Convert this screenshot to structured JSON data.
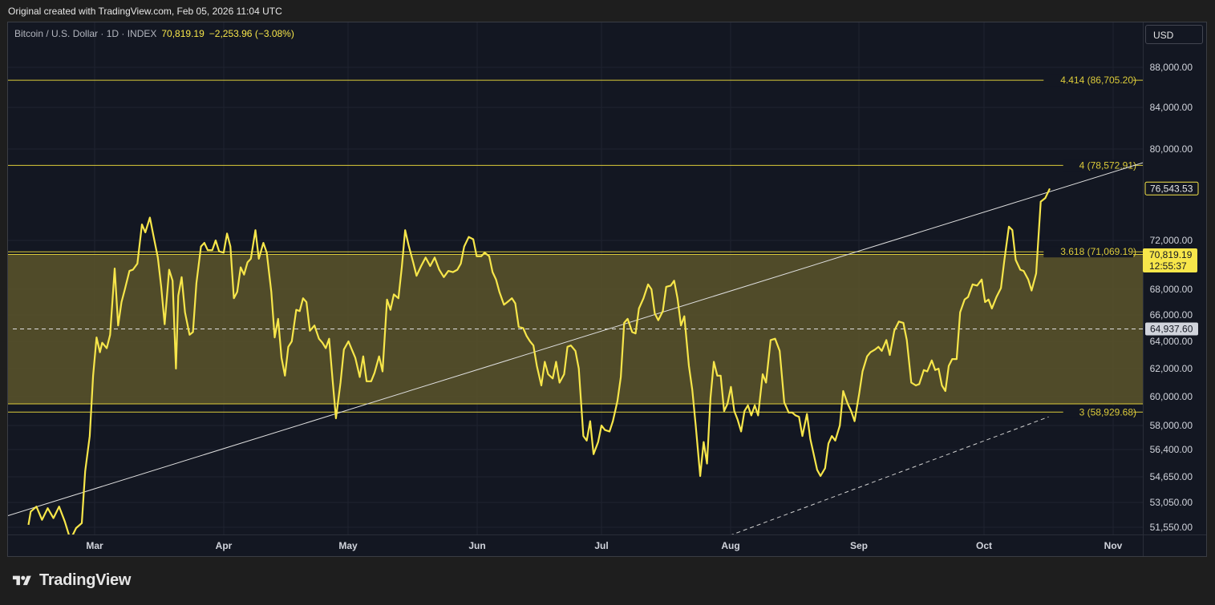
{
  "header": {
    "caption": "Original created with TradingView.com, Feb 05, 2026 11:04 UTC"
  },
  "symbol": {
    "name": "Bitcoin / U.S. Dollar · 1D · INDEX",
    "price": "70,819.19",
    "change": "−2,253.96 (−3.08%)"
  },
  "currency_button": "USD",
  "footer": {
    "logo_text": "TradingView"
  },
  "colors": {
    "background": "#131722",
    "price_line": "#f7e64a",
    "fib_line": "#dccb3a",
    "fib_fill": "#5c552a",
    "trendline": "#e0e0e0",
    "grid": "#1f2330",
    "axis_text": "#d1d4dc"
  },
  "chart_data": {
    "type": "line",
    "title": "",
    "xlabel": "",
    "ylabel": "",
    "x_tick_labels": [
      "Mar",
      "Apr",
      "May",
      "Jun",
      "Jul",
      "Aug",
      "Sep",
      "Oct",
      "Nov"
    ],
    "y_tick_labels": [
      51550,
      53050,
      54650,
      56400,
      58000,
      60000,
      62000,
      64000,
      66000,
      68000,
      72000,
      80000,
      84000,
      88000
    ],
    "ylim": [
      50900,
      91300
    ],
    "xlim": [
      0,
      1
    ],
    "grid": true,
    "series": [
      {
        "points": [
          [
            0.018,
            51700
          ],
          [
            0.02,
            52500
          ],
          [
            0.025,
            52800
          ],
          [
            0.03,
            52000
          ],
          [
            0.035,
            52700
          ],
          [
            0.04,
            52100
          ],
          [
            0.045,
            52800
          ],
          [
            0.05,
            51900
          ],
          [
            0.055,
            50800
          ],
          [
            0.06,
            51500
          ],
          [
            0.065,
            51800
          ],
          [
            0.068,
            55000
          ],
          [
            0.072,
            57300
          ],
          [
            0.075,
            61500
          ],
          [
            0.078,
            64300
          ],
          [
            0.081,
            63200
          ],
          [
            0.083,
            63900
          ],
          [
            0.087,
            63500
          ],
          [
            0.09,
            64500
          ],
          [
            0.094,
            69700
          ],
          [
            0.097,
            65200
          ],
          [
            0.1,
            67000
          ],
          [
            0.103,
            68000
          ],
          [
            0.107,
            69500
          ],
          [
            0.11,
            69600
          ],
          [
            0.114,
            70100
          ],
          [
            0.118,
            73400
          ],
          [
            0.121,
            72700
          ],
          [
            0.125,
            74000
          ],
          [
            0.128,
            72500
          ],
          [
            0.132,
            70600
          ],
          [
            0.135,
            68200
          ],
          [
            0.138,
            65300
          ],
          [
            0.142,
            69600
          ],
          [
            0.145,
            68700
          ],
          [
            0.148,
            62000
          ],
          [
            0.15,
            67500
          ],
          [
            0.153,
            69000
          ],
          [
            0.156,
            66200
          ],
          [
            0.16,
            64500
          ],
          [
            0.163,
            64700
          ],
          [
            0.166,
            68500
          ],
          [
            0.17,
            71500
          ],
          [
            0.173,
            71800
          ],
          [
            0.176,
            71200
          ],
          [
            0.18,
            71200
          ],
          [
            0.183,
            72000
          ],
          [
            0.186,
            71100
          ],
          [
            0.19,
            71000
          ],
          [
            0.193,
            72600
          ],
          [
            0.196,
            71500
          ],
          [
            0.199,
            67300
          ],
          [
            0.202,
            67800
          ],
          [
            0.205,
            69800
          ],
          [
            0.208,
            69200
          ],
          [
            0.211,
            70200
          ],
          [
            0.214,
            70500
          ],
          [
            0.218,
            72900
          ],
          [
            0.221,
            70500
          ],
          [
            0.225,
            71800
          ],
          [
            0.228,
            71000
          ],
          [
            0.232,
            67800
          ],
          [
            0.235,
            64300
          ],
          [
            0.238,
            65700
          ],
          [
            0.241,
            62800
          ],
          [
            0.244,
            61500
          ],
          [
            0.247,
            63600
          ],
          [
            0.25,
            64000
          ],
          [
            0.254,
            66400
          ],
          [
            0.257,
            66300
          ],
          [
            0.26,
            67300
          ],
          [
            0.263,
            67000
          ],
          [
            0.266,
            64800
          ],
          [
            0.27,
            65200
          ],
          [
            0.274,
            64200
          ],
          [
            0.277,
            63900
          ],
          [
            0.28,
            63500
          ],
          [
            0.283,
            64200
          ],
          [
            0.286,
            61200
          ],
          [
            0.289,
            58500
          ],
          [
            0.293,
            61000
          ],
          [
            0.296,
            63400
          ],
          [
            0.3,
            64000
          ],
          [
            0.303,
            63400
          ],
          [
            0.306,
            62800
          ],
          [
            0.31,
            61400
          ],
          [
            0.313,
            62900
          ],
          [
            0.316,
            61100
          ],
          [
            0.32,
            61100
          ],
          [
            0.323,
            61700
          ],
          [
            0.327,
            62900
          ],
          [
            0.33,
            61800
          ],
          [
            0.334,
            67200
          ],
          [
            0.337,
            66400
          ],
          [
            0.34,
            67600
          ],
          [
            0.344,
            67300
          ],
          [
            0.347,
            69800
          ],
          [
            0.35,
            72900
          ],
          [
            0.353,
            71600
          ],
          [
            0.357,
            70200
          ],
          [
            0.36,
            69100
          ],
          [
            0.364,
            69900
          ],
          [
            0.368,
            70600
          ],
          [
            0.372,
            69900
          ],
          [
            0.376,
            70600
          ],
          [
            0.38,
            69600
          ],
          [
            0.384,
            69000
          ],
          [
            0.388,
            69500
          ],
          [
            0.392,
            69400
          ],
          [
            0.396,
            69600
          ],
          [
            0.399,
            70100
          ],
          [
            0.402,
            71500
          ],
          [
            0.406,
            72300
          ],
          [
            0.41,
            72100
          ],
          [
            0.413,
            70700
          ],
          [
            0.417,
            70700
          ],
          [
            0.42,
            71000
          ],
          [
            0.424,
            70700
          ],
          [
            0.427,
            69400
          ],
          [
            0.43,
            68800
          ],
          [
            0.433,
            67800
          ],
          [
            0.437,
            66800
          ],
          [
            0.44,
            67000
          ],
          [
            0.444,
            67300
          ],
          [
            0.447,
            66900
          ],
          [
            0.45,
            65100
          ],
          [
            0.454,
            65000
          ],
          [
            0.457,
            64400
          ],
          [
            0.46,
            64000
          ],
          [
            0.463,
            63700
          ],
          [
            0.466,
            62200
          ],
          [
            0.47,
            60800
          ],
          [
            0.473,
            62500
          ],
          [
            0.476,
            61600
          ],
          [
            0.48,
            61300
          ],
          [
            0.483,
            62500
          ],
          [
            0.486,
            61000
          ],
          [
            0.49,
            61600
          ],
          [
            0.493,
            63600
          ],
          [
            0.496,
            63700
          ],
          [
            0.5,
            63300
          ],
          [
            0.503,
            62000
          ],
          [
            0.507,
            57300
          ],
          [
            0.51,
            57000
          ],
          [
            0.513,
            58300
          ],
          [
            0.516,
            56100
          ],
          [
            0.52,
            56900
          ],
          [
            0.523,
            58000
          ],
          [
            0.526,
            57700
          ],
          [
            0.53,
            57600
          ],
          [
            0.533,
            58300
          ],
          [
            0.537,
            59700
          ],
          [
            0.54,
            61400
          ],
          [
            0.543,
            65400
          ],
          [
            0.546,
            65700
          ],
          [
            0.55,
            64700
          ],
          [
            0.553,
            64600
          ],
          [
            0.556,
            66500
          ],
          [
            0.56,
            67300
          ],
          [
            0.564,
            68400
          ],
          [
            0.567,
            68000
          ],
          [
            0.57,
            66100
          ],
          [
            0.573,
            65600
          ],
          [
            0.577,
            66300
          ],
          [
            0.58,
            68200
          ],
          [
            0.584,
            68300
          ],
          [
            0.587,
            68700
          ],
          [
            0.59,
            67300
          ],
          [
            0.593,
            65200
          ],
          [
            0.596,
            65900
          ],
          [
            0.6,
            62200
          ],
          [
            0.603,
            60500
          ],
          [
            0.606,
            58000
          ],
          [
            0.61,
            54700
          ],
          [
            0.613,
            56900
          ],
          [
            0.616,
            55500
          ],
          [
            0.619,
            59900
          ],
          [
            0.622,
            62500
          ],
          [
            0.625,
            61500
          ],
          [
            0.628,
            61500
          ],
          [
            0.631,
            59000
          ],
          [
            0.634,
            59500
          ],
          [
            0.637,
            60700
          ],
          [
            0.64,
            59000
          ],
          [
            0.643,
            58400
          ],
          [
            0.646,
            57600
          ],
          [
            0.649,
            59000
          ],
          [
            0.652,
            59400
          ],
          [
            0.655,
            58700
          ],
          [
            0.658,
            59400
          ],
          [
            0.661,
            58700
          ],
          [
            0.665,
            61600
          ],
          [
            0.668,
            61000
          ],
          [
            0.672,
            64100
          ],
          [
            0.676,
            64200
          ],
          [
            0.68,
            63300
          ],
          [
            0.684,
            59600
          ],
          [
            0.688,
            58900
          ],
          [
            0.691,
            58900
          ],
          [
            0.694,
            58700
          ],
          [
            0.697,
            58600
          ],
          [
            0.7,
            57300
          ],
          [
            0.704,
            58800
          ],
          [
            0.707,
            57100
          ],
          [
            0.71,
            56100
          ],
          [
            0.713,
            55100
          ],
          [
            0.716,
            54700
          ],
          [
            0.72,
            55200
          ],
          [
            0.723,
            56800
          ],
          [
            0.726,
            57300
          ],
          [
            0.729,
            57000
          ],
          [
            0.733,
            58000
          ],
          [
            0.736,
            60400
          ],
          [
            0.74,
            59500
          ],
          [
            0.743,
            59000
          ],
          [
            0.746,
            58300
          ],
          [
            0.75,
            60200
          ],
          [
            0.753,
            61800
          ],
          [
            0.757,
            62900
          ],
          [
            0.76,
            63200
          ],
          [
            0.764,
            63400
          ],
          [
            0.767,
            63600
          ],
          [
            0.77,
            63300
          ],
          [
            0.774,
            64100
          ],
          [
            0.777,
            63000
          ],
          [
            0.781,
            64800
          ],
          [
            0.785,
            65500
          ],
          [
            0.789,
            65400
          ],
          [
            0.792,
            64100
          ],
          [
            0.796,
            61000
          ],
          [
            0.8,
            60800
          ],
          [
            0.803,
            60900
          ],
          [
            0.807,
            61900
          ],
          [
            0.81,
            61800
          ],
          [
            0.814,
            62600
          ],
          [
            0.817,
            61900
          ],
          [
            0.82,
            62000
          ],
          [
            0.823,
            60800
          ],
          [
            0.826,
            60400
          ],
          [
            0.829,
            62200
          ],
          [
            0.832,
            62700
          ],
          [
            0.836,
            62700
          ],
          [
            0.839,
            66200
          ],
          [
            0.843,
            67200
          ],
          [
            0.846,
            67400
          ],
          [
            0.85,
            68400
          ],
          [
            0.854,
            68300
          ],
          [
            0.858,
            68800
          ],
          [
            0.861,
            67000
          ],
          [
            0.864,
            67200
          ],
          [
            0.867,
            66500
          ],
          [
            0.871,
            67400
          ],
          [
            0.875,
            68100
          ],
          [
            0.878,
            70400
          ],
          [
            0.882,
            73200
          ],
          [
            0.885,
            72900
          ],
          [
            0.888,
            70400
          ],
          [
            0.892,
            69600
          ],
          [
            0.895,
            69500
          ],
          [
            0.899,
            68800
          ],
          [
            0.902,
            67900
          ],
          [
            0.906,
            69300
          ],
          [
            0.91,
            75400
          ],
          [
            0.914,
            75700
          ],
          [
            0.918,
            76543.53
          ]
        ]
      }
    ],
    "fib_levels": [
      {
        "label": "4.414 (86,705.20)",
        "value": 86705.2
      },
      {
        "label": "4 (78,572.91)",
        "value": 78572.91
      },
      {
        "label": "3.618 (71,069.19)",
        "value": 71069.19
      },
      {
        "label": "3 (58,929.68)",
        "value": 58929.68
      }
    ],
    "fib_band": [
      59500,
      70850
    ],
    "dashed_level": 64937.6,
    "trendline": {
      "from": [
        0.0,
        52250
      ],
      "to": [
        1.0,
        78800
      ]
    },
    "dashed_trendline": {
      "from": [
        0.63,
        50900
      ],
      "to": [
        0.917,
        58600
      ]
    },
    "price_tags": [
      {
        "text": "76,543.53",
        "value": 76543.53,
        "style": "outline"
      },
      {
        "text": "70,819.19",
        "subtext": "12:55:37",
        "value": 70819.19,
        "style": "filled"
      },
      {
        "text": "64,937.60",
        "value": 64937.6,
        "style": "gray"
      }
    ]
  }
}
